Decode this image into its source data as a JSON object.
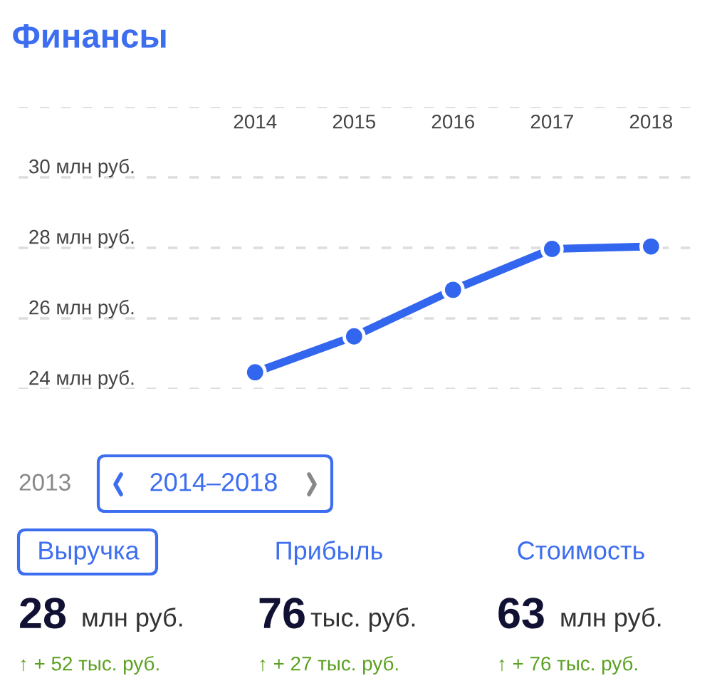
{
  "chart_data": {
    "type": "line",
    "title": "Финансы",
    "categories": [
      "2014",
      "2015",
      "2016",
      "2017",
      "2018"
    ],
    "series": [
      {
        "color": "#3366ee",
        "values": [
          24.47,
          25.49,
          26.81,
          27.97,
          28.04
        ]
      }
    ],
    "ylim": [
      24,
      32
    ],
    "yticks": [
      {
        "value": 24,
        "label": "24 млн руб."
      },
      {
        "value": 26,
        "label": "26 млн руб."
      },
      {
        "value": 28,
        "label": "28 млн руб."
      },
      {
        "value": 30,
        "label": "30 млн руб."
      },
      {
        "value": 32,
        "label": null
      }
    ],
    "grid": "y",
    "marker": "circle",
    "line_style": "solid",
    "legend": false,
    "annotations": [
      "2013",
      "2014–2018",
      "Выручка",
      "Прибыль",
      "Стоимость",
      "28",
      "млн руб.",
      "76",
      "тыс. руб.",
      "63",
      "млн руб.",
      "↑ + 52 тыс. руб.",
      "↑ + 27 тыс. руб.",
      "↑ + 76 тыс. руб."
    ]
  }
}
